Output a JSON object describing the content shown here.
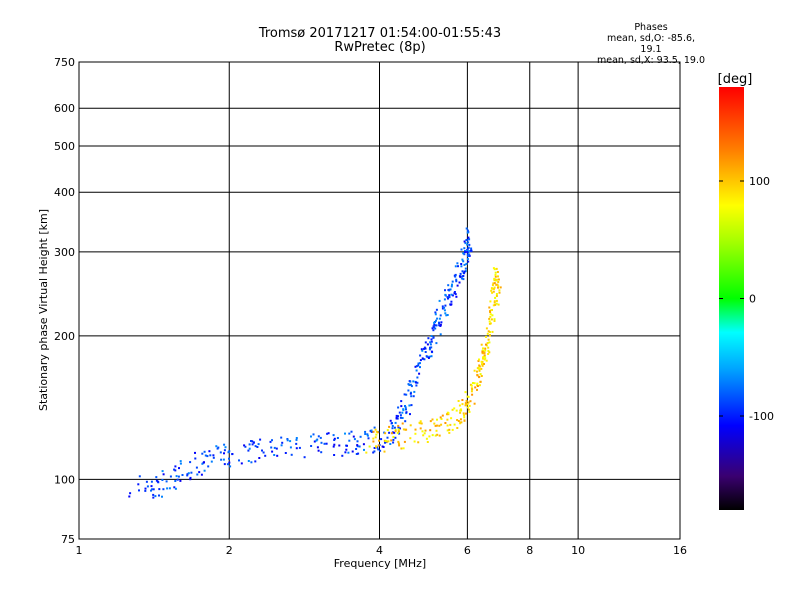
{
  "header": {
    "title": "Tromsø 20171217 01:54:00-01:55:43",
    "subtitle": "RwPretec (8p)"
  },
  "stats": {
    "heading": "Phases",
    "line_o": "mean, sd,O: -85.6, 19.1",
    "line_x": "mean, sd,X: 93.5, 19.0"
  },
  "colorbar": {
    "unit_label": "[deg]",
    "ticks": [
      "100",
      "0",
      "-100"
    ],
    "tick_values": [
      100,
      0,
      -100
    ],
    "range": [
      -180,
      180
    ]
  },
  "chart_data": {
    "type": "scatter",
    "title": "Tromsø 20171217 01:54:00-01:55:43",
    "subtitle": "RwPretec (8p)",
    "xlabel": "Frequency [MHz]",
    "ylabel": "Stationary phase Virtual Height [km]",
    "xscale": "log",
    "yscale": "log",
    "xlim": [
      1,
      16
    ],
    "ylim": [
      75,
      750
    ],
    "xticks": [
      1,
      2,
      4,
      6,
      8,
      10,
      16
    ],
    "xtick_labels": [
      "1",
      "2",
      "4",
      "6",
      "8",
      "10",
      "16"
    ],
    "xgrid": [
      2,
      4,
      6,
      8,
      10
    ],
    "yticks": [
      75,
      100,
      200,
      300,
      400,
      500,
      600,
      750
    ],
    "ytick_labels": [
      "75",
      "100",
      "200",
      "300",
      "400",
      "500",
      "600",
      "750"
    ],
    "ygrid": [
      100,
      200,
      300,
      400,
      500,
      600
    ],
    "colorbar_label": "[deg]",
    "series": [
      {
        "name": "O",
        "phase": -90,
        "trace": [
          [
            1.25,
            96
          ],
          [
            1.45,
            97
          ],
          [
            1.6,
            104
          ],
          [
            1.8,
            110
          ],
          [
            2.0,
            113
          ],
          [
            2.3,
            115
          ],
          [
            2.7,
            117
          ],
          [
            3.2,
            118
          ],
          [
            3.6,
            119
          ],
          [
            4.0,
            122
          ],
          [
            4.3,
            128
          ],
          [
            4.5,
            140
          ],
          [
            4.7,
            160
          ],
          [
            4.9,
            180
          ],
          [
            5.1,
            200
          ],
          [
            5.3,
            220
          ],
          [
            5.5,
            240
          ],
          [
            5.7,
            260
          ],
          [
            5.9,
            285
          ],
          [
            6.0,
            300
          ],
          [
            6.05,
            320
          ]
        ]
      },
      {
        "name": "X",
        "phase": 95,
        "trace": [
          [
            3.8,
            120
          ],
          [
            4.2,
            122
          ],
          [
            4.7,
            125
          ],
          [
            5.2,
            128
          ],
          [
            5.6,
            133
          ],
          [
            5.9,
            140
          ],
          [
            6.1,
            150
          ],
          [
            6.3,
            165
          ],
          [
            6.45,
            180
          ],
          [
            6.6,
            200
          ],
          [
            6.75,
            225
          ],
          [
            6.85,
            250
          ],
          [
            6.9,
            270
          ]
        ]
      }
    ]
  }
}
